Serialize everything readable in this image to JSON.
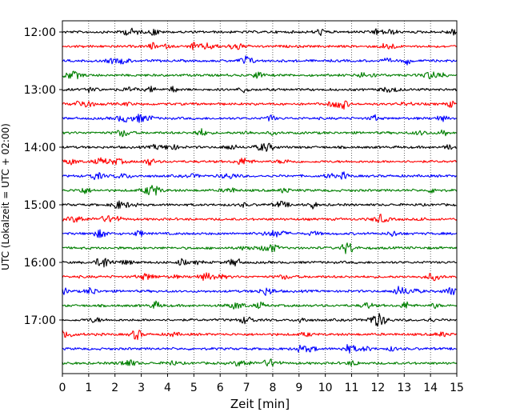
{
  "chart_data": {
    "type": "line",
    "title": "",
    "xlabel": "Zeit  [min]",
    "ylabel": "UTC (Lokalzeit = UTC + 02:00)",
    "xlim": [
      0,
      15
    ],
    "x_ticks": [
      "0",
      "1",
      "2",
      "3",
      "4",
      "5",
      "6",
      "7",
      "8",
      "9",
      "10",
      "11",
      "12",
      "13",
      "14",
      "15"
    ],
    "y_tick_labels": [
      "12:00",
      "13:00",
      "14:00",
      "15:00",
      "16:00",
      "17:00"
    ],
    "start_time": "12:00",
    "trace_interval_minutes": 15,
    "trace_count": 24,
    "trace_colors": [
      "#000000",
      "#ff0000",
      "#0000ff",
      "#007f00"
    ],
    "grid": "vertical dotted",
    "legend": "none"
  }
}
